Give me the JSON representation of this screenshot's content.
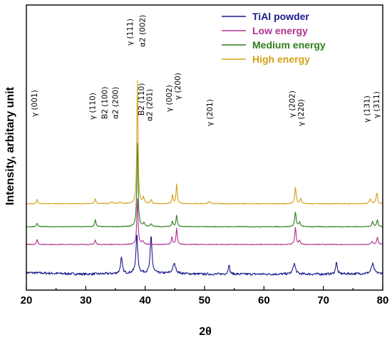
{
  "chart_data": {
    "type": "line",
    "xlabel": "2θ",
    "ylabel": "Intensity, arbitary unit",
    "xlim": [
      20,
      80
    ],
    "xticks": [
      20,
      30,
      40,
      50,
      60,
      70,
      80
    ],
    "legend_position": "top-right",
    "grid": false,
    "series": [
      {
        "name": "TiAl powder",
        "color": "#1a1a8c",
        "baseline": 10,
        "noise": 1.6,
        "base_profile": [
          [
            20,
            2
          ],
          [
            30,
            0
          ],
          [
            40,
            1.5
          ],
          [
            50,
            0
          ],
          [
            60,
            0
          ],
          [
            70,
            0
          ],
          [
            80,
            1
          ]
        ],
        "peaks": [
          [
            36.0,
            21,
            0.18
          ],
          [
            38.6,
            52,
            0.18
          ],
          [
            41.0,
            51,
            0.17
          ],
          [
            44.9,
            13,
            0.3
          ],
          [
            54.1,
            13,
            0.15
          ],
          [
            65.1,
            14,
            0.25
          ],
          [
            72.2,
            17,
            0.15
          ],
          [
            78.3,
            13,
            0.25
          ]
        ]
      },
      {
        "name": "Low energy",
        "color": "#b0328e",
        "baseline": 50,
        "noise": 0.5,
        "base_profile": [
          [
            20,
            0
          ],
          [
            80,
            0
          ]
        ],
        "peaks": [
          [
            21.8,
            7,
            0.12
          ],
          [
            31.6,
            6,
            0.12
          ],
          [
            38.7,
            64,
            0.12
          ],
          [
            39.6,
            4,
            0.2
          ],
          [
            44.5,
            10,
            0.12
          ],
          [
            45.3,
            22,
            0.12
          ],
          [
            65.3,
            23,
            0.14
          ],
          [
            66.0,
            5,
            0.15
          ],
          [
            78.2,
            4,
            0.15
          ],
          [
            79.1,
            10,
            0.14
          ]
        ]
      },
      {
        "name": "Medium energy",
        "color": "#2e7d1e",
        "baseline": 74,
        "noise": 0.5,
        "base_profile": [
          [
            20,
            0
          ],
          [
            80,
            0
          ]
        ],
        "peaks": [
          [
            21.8,
            5,
            0.12
          ],
          [
            31.6,
            10,
            0.12
          ],
          [
            38.7,
            115,
            0.12
          ],
          [
            39.8,
            5,
            0.15
          ],
          [
            41.0,
            4,
            0.15
          ],
          [
            44.6,
            8,
            0.12
          ],
          [
            45.3,
            16,
            0.12
          ],
          [
            65.3,
            20,
            0.14
          ],
          [
            66.0,
            6,
            0.15
          ],
          [
            78.3,
            7,
            0.15
          ],
          [
            79.1,
            9,
            0.14
          ]
        ]
      },
      {
        "name": "High energy",
        "color": "#d4a017",
        "baseline": 105,
        "noise": 0.5,
        "base_profile": [
          [
            20,
            0
          ],
          [
            80,
            0
          ]
        ],
        "peaks": [
          [
            21.8,
            6,
            0.12
          ],
          [
            31.6,
            7,
            0.12
          ],
          [
            34.4,
            2,
            0.3
          ],
          [
            35.8,
            2,
            0.2
          ],
          [
            38.7,
            172,
            0.11
          ],
          [
            39.7,
            8,
            0.15
          ],
          [
            41.0,
            5,
            0.15
          ],
          [
            44.6,
            12,
            0.12
          ],
          [
            45.3,
            27,
            0.12
          ],
          [
            50.8,
            3,
            0.2
          ],
          [
            65.3,
            22,
            0.14
          ],
          [
            66.2,
            7,
            0.15
          ],
          [
            77.9,
            6,
            0.2
          ],
          [
            79.0,
            15,
            0.14
          ]
        ]
      }
    ],
    "annotations": [
      {
        "text": "γ (001)",
        "x": 21.8
      },
      {
        "text": "γ (110)",
        "x": 31.6
      },
      {
        "text": "B2 (100)",
        "x": 33.6
      },
      {
        "text": "α2 (200)",
        "x": 35.4
      },
      {
        "text": "γ (111)",
        "x": 37.9
      },
      {
        "text": "α2 (002)",
        "x": 40.0
      },
      {
        "text": "B2 (110)",
        "x": 39.8
      },
      {
        "text": "α2 (201)",
        "x": 41.2
      },
      {
        "text": "γ (002)",
        "x": 44.5
      },
      {
        "text": "γ (200)",
        "x": 45.9
      },
      {
        "text": "γ (201)",
        "x": 51.3
      },
      {
        "text": "γ (202)",
        "x": 65.2
      },
      {
        "text": "γ (220)",
        "x": 66.7
      },
      {
        "text": "γ (131)",
        "x": 77.8
      },
      {
        "text": "γ (311)",
        "x": 79.4
      }
    ]
  }
}
